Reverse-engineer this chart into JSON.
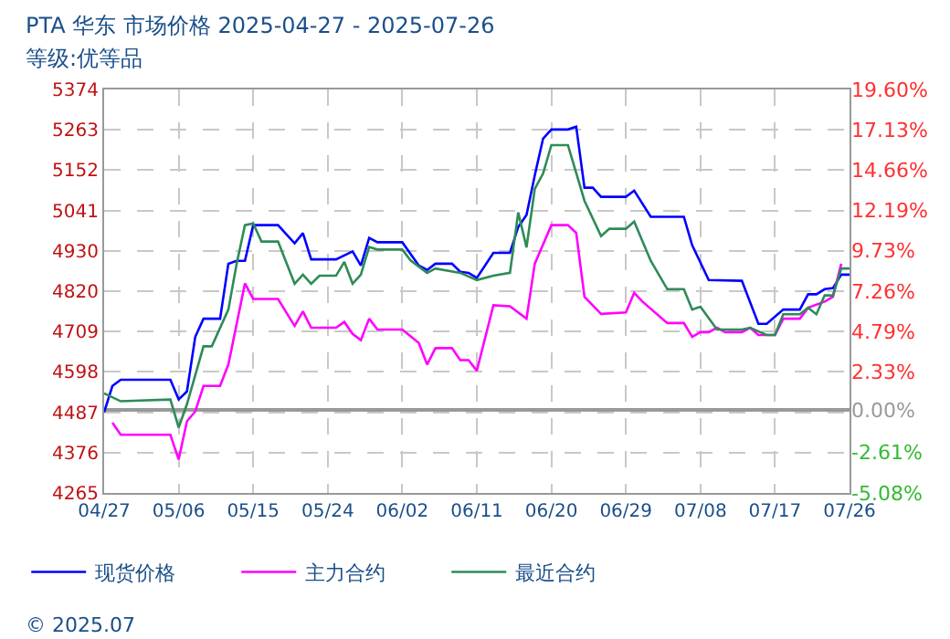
{
  "chart_data": {
    "type": "line",
    "title": "PTA 华东 市场价格 2025-04-27 - 2025-07-26",
    "subtitle": "等级:优等品",
    "xlim": [
      "2025-04-27",
      "2025-07-26"
    ],
    "xticks": [
      {
        "value": "2025-04-27",
        "label": "04/27"
      },
      {
        "value": "2025-05-06",
        "label": "05/06"
      },
      {
        "value": "2025-05-15",
        "label": "05/15"
      },
      {
        "value": "2025-05-24",
        "label": "05/24"
      },
      {
        "value": "2025-06-02",
        "label": "06/02"
      },
      {
        "value": "2025-06-11",
        "label": "06/11"
      },
      {
        "value": "2025-06-20",
        "label": "06/20"
      },
      {
        "value": "2025-06-29",
        "label": "06/29"
      },
      {
        "value": "2025-07-08",
        "label": "07/08"
      },
      {
        "value": "2025-07-17",
        "label": "07/17"
      },
      {
        "value": "2025-07-26",
        "label": "07/26"
      }
    ],
    "ylim": [
      4265,
      5374
    ],
    "yticks": [
      4265,
      4376,
      4487,
      4598,
      4709,
      4820,
      4930,
      5041,
      5152,
      5263,
      5374
    ],
    "y2lim": [
      -5.08,
      19.6
    ],
    "y2ticks": [
      {
        "value": -5.08,
        "label": "-5.08%"
      },
      {
        "value": -2.61,
        "label": "-2.61%"
      },
      {
        "value": 0,
        "label": "0.00%"
      },
      {
        "value": 2.33,
        "label": "2.33%"
      },
      {
        "value": 4.79,
        "label": "4.79%"
      },
      {
        "value": 7.26,
        "label": "7.26%"
      },
      {
        "value": 9.73,
        "label": "9.73%"
      },
      {
        "value": 12.19,
        "label": "12.19%"
      },
      {
        "value": 14.66,
        "label": "14.66%"
      },
      {
        "value": 17.13,
        "label": "17.13%"
      },
      {
        "value": 19.6,
        "label": "19.60%"
      }
    ],
    "grid": true,
    "legend": "bottom",
    "marker": "none",
    "line_style": "solid",
    "annotations": [
      "© 2025.07"
    ],
    "series": [
      {
        "name": "现货价格",
        "color": "#0000ff",
        "x": [
          "2025-04-27",
          "2025-04-28",
          "2025-04-29",
          "2025-05-05",
          "2025-05-06",
          "2025-05-07",
          "2025-05-08",
          "2025-05-09",
          "2025-05-11",
          "2025-05-12",
          "2025-05-13",
          "2025-05-14",
          "2025-05-15",
          "2025-05-18",
          "2025-05-20",
          "2025-05-21",
          "2025-05-22",
          "2025-05-25",
          "2025-05-27",
          "2025-05-28",
          "2025-05-29",
          "2025-05-30",
          "2025-06-02",
          "2025-06-04",
          "2025-06-05",
          "2025-06-06",
          "2025-06-08",
          "2025-06-09",
          "2025-06-10",
          "2025-06-11",
          "2025-06-13",
          "2025-06-15",
          "2025-06-16",
          "2025-06-17",
          "2025-06-18",
          "2025-06-19",
          "2025-06-20",
          "2025-06-22",
          "2025-06-23",
          "2025-06-24",
          "2025-06-25",
          "2025-06-26",
          "2025-06-29",
          "2025-06-30",
          "2025-07-02",
          "2025-07-06",
          "2025-07-07",
          "2025-07-09",
          "2025-07-13",
          "2025-07-15",
          "2025-07-16",
          "2025-07-18",
          "2025-07-20",
          "2025-07-21",
          "2025-07-22",
          "2025-07-23",
          "2025-07-24",
          "2025-07-25",
          "2025-07-26"
        ],
        "values": [
          4487,
          4559,
          4576,
          4576,
          4522,
          4544,
          4694,
          4744,
          4744,
          4895,
          4903,
          4903,
          5001,
          5001,
          4951,
          4979,
          4907,
          4907,
          4929,
          4890,
          4966,
          4954,
          4954,
          4890,
          4878,
          4895,
          4895,
          4873,
          4870,
          4856,
          4925,
          4925,
          4996,
          5029,
          5138,
          5239,
          5264,
          5264,
          5272,
          5104,
          5104,
          5079,
          5079,
          5096,
          5024,
          5024,
          4946,
          4850,
          4848,
          4730,
          4730,
          4769,
          4769,
          4811,
          4811,
          4825,
          4828,
          4865,
          4865
        ]
      },
      {
        "name": "主力合约",
        "color": "#ff00ff",
        "x": [
          "2025-04-28",
          "2025-04-29",
          "2025-05-05",
          "2025-05-06",
          "2025-05-07",
          "2025-05-08",
          "2025-05-09",
          "2025-05-11",
          "2025-05-12",
          "2025-05-14",
          "2025-05-15",
          "2025-05-18",
          "2025-05-20",
          "2025-05-21",
          "2025-05-22",
          "2025-05-25",
          "2025-05-26",
          "2025-05-27",
          "2025-05-28",
          "2025-05-29",
          "2025-05-30",
          "2025-06-02",
          "2025-06-04",
          "2025-06-05",
          "2025-06-06",
          "2025-06-08",
          "2025-06-09",
          "2025-06-10",
          "2025-06-11",
          "2025-06-13",
          "2025-06-15",
          "2025-06-17",
          "2025-06-18",
          "2025-06-20",
          "2025-06-22",
          "2025-06-23",
          "2025-06-24",
          "2025-06-26",
          "2025-06-29",
          "2025-06-30",
          "2025-07-01",
          "2025-07-04",
          "2025-07-06",
          "2025-07-07",
          "2025-07-08",
          "2025-07-09",
          "2025-07-10",
          "2025-07-11",
          "2025-07-13",
          "2025-07-14",
          "2025-07-15",
          "2025-07-17",
          "2025-07-18",
          "2025-07-20",
          "2025-07-21",
          "2025-07-23",
          "2025-07-24",
          "2025-07-25"
        ],
        "values": [
          4458,
          4425,
          4425,
          4357,
          4462,
          4489,
          4559,
          4559,
          4618,
          4841,
          4798,
          4798,
          4724,
          4764,
          4719,
          4719,
          4735,
          4702,
          4685,
          4744,
          4714,
          4714,
          4677,
          4618,
          4663,
          4663,
          4630,
          4630,
          4601,
          4781,
          4778,
          4744,
          4895,
          5001,
          5001,
          4980,
          4804,
          4757,
          4761,
          4815,
          4791,
          4732,
          4732,
          4694,
          4707,
          4707,
          4719,
          4707,
          4707,
          4719,
          4699,
          4699,
          4744,
          4744,
          4774,
          4791,
          4804,
          4895
        ]
      },
      {
        "name": "最近合约",
        "color": "#2e8b57",
        "x": [
          "2025-04-27",
          "2025-04-29",
          "2025-05-05",
          "2025-05-06",
          "2025-05-07",
          "2025-05-09",
          "2025-05-10",
          "2025-05-12",
          "2025-05-13",
          "2025-05-14",
          "2025-05-15",
          "2025-05-16",
          "2025-05-18",
          "2025-05-20",
          "2025-05-21",
          "2025-05-22",
          "2025-05-23",
          "2025-05-25",
          "2025-05-26",
          "2025-05-27",
          "2025-05-28",
          "2025-05-29",
          "2025-05-30",
          "2025-06-02",
          "2025-06-03",
          "2025-06-05",
          "2025-06-06",
          "2025-06-09",
          "2025-06-11",
          "2025-06-13",
          "2025-06-15",
          "2025-06-16",
          "2025-06-17",
          "2025-06-18",
          "2025-06-19",
          "2025-06-20",
          "2025-06-22",
          "2025-06-24",
          "2025-06-26",
          "2025-06-27",
          "2025-06-29",
          "2025-06-30",
          "2025-07-02",
          "2025-07-04",
          "2025-07-06",
          "2025-07-07",
          "2025-07-08",
          "2025-07-10",
          "2025-07-13",
          "2025-07-14",
          "2025-07-16",
          "2025-07-17",
          "2025-07-18",
          "2025-07-20",
          "2025-07-21",
          "2025-07-22",
          "2025-07-23",
          "2025-07-24",
          "2025-07-25",
          "2025-07-26"
        ],
        "values": [
          4539,
          4517,
          4522,
          4445,
          4509,
          4668,
          4668,
          4769,
          4895,
          5001,
          5006,
          4956,
          4956,
          4840,
          4865,
          4840,
          4862,
          4862,
          4900,
          4840,
          4865,
          4941,
          4934,
          4934,
          4904,
          4870,
          4882,
          4870,
          4850,
          4862,
          4870,
          5036,
          4940,
          5101,
          5143,
          5221,
          5221,
          5068,
          4971,
          4991,
          4991,
          5011,
          4903,
          4825,
          4825,
          4769,
          4777,
          4714,
          4714,
          4719,
          4699,
          4699,
          4756,
          4756,
          4774,
          4756,
          4808,
          4808,
          4882,
          4882
        ]
      }
    ]
  }
}
